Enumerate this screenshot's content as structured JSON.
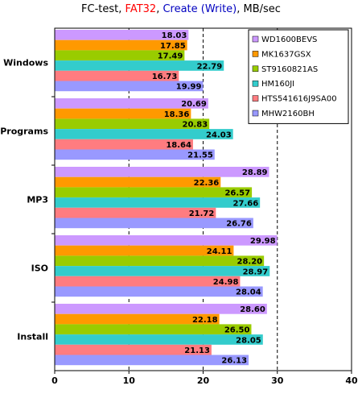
{
  "title": {
    "part1": "FC-test, ",
    "part2": "FAT32",
    "part3": ", ",
    "part4": "Create (Write)",
    "part5": ", MB/sec"
  },
  "chart_data": {
    "type": "bar",
    "orientation": "horizontal",
    "title": "FC-test, FAT32, Create (Write), MB/sec",
    "categories": [
      "Windows",
      "Programs",
      "MP3",
      "ISO",
      "Install"
    ],
    "xlim": [
      0,
      40
    ],
    "xticks": [
      0,
      10,
      20,
      30,
      40
    ],
    "grid": "vertical dashed",
    "legend_position": "top-right",
    "series": [
      {
        "name": "WD1600BEVS",
        "color": "#cc99ff",
        "values": [
          18.03,
          20.69,
          28.89,
          29.98,
          28.6
        ]
      },
      {
        "name": "MK1637GSX",
        "color": "#ff9900",
        "values": [
          17.85,
          18.36,
          22.36,
          24.11,
          22.18
        ]
      },
      {
        "name": "ST9160821AS",
        "color": "#99cc00",
        "values": [
          17.49,
          20.83,
          26.57,
          28.2,
          26.5
        ]
      },
      {
        "name": "HM160JI",
        "color": "#33cccc",
        "values": [
          22.79,
          24.03,
          27.66,
          28.97,
          28.05
        ]
      },
      {
        "name": "HTS541616J9SA00",
        "color": "#ff7c80",
        "values": [
          16.73,
          18.64,
          21.72,
          24.98,
          21.13
        ]
      },
      {
        "name": "MHW2160BH",
        "color": "#9999ff",
        "values": [
          19.99,
          21.55,
          26.76,
          28.04,
          26.13
        ]
      }
    ]
  }
}
